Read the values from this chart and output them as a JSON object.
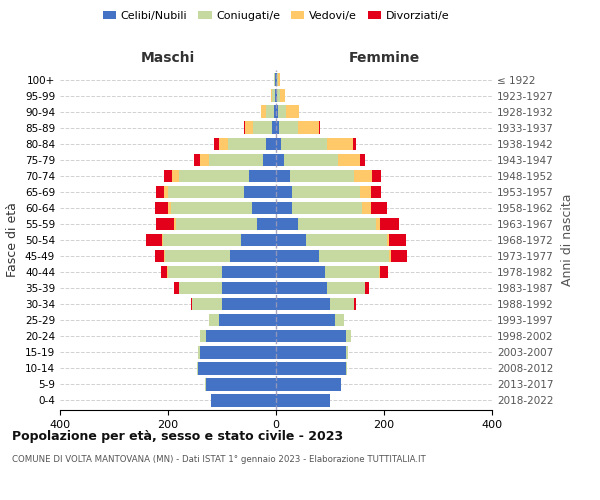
{
  "age_groups": [
    "0-4",
    "5-9",
    "10-14",
    "15-19",
    "20-24",
    "25-29",
    "30-34",
    "35-39",
    "40-44",
    "45-49",
    "50-54",
    "55-59",
    "60-64",
    "65-69",
    "70-74",
    "75-79",
    "80-84",
    "85-89",
    "90-94",
    "95-99",
    "100+"
  ],
  "birth_years": [
    "2018-2022",
    "2013-2017",
    "2008-2012",
    "2003-2007",
    "1998-2002",
    "1993-1997",
    "1988-1992",
    "1983-1987",
    "1978-1982",
    "1973-1977",
    "1968-1972",
    "1963-1967",
    "1958-1962",
    "1953-1957",
    "1948-1952",
    "1943-1947",
    "1938-1942",
    "1933-1937",
    "1928-1932",
    "1923-1927",
    "≤ 1922"
  ],
  "colors": {
    "celibi": "#4472c4",
    "coniugati": "#c5d9a0",
    "vedovi": "#ffc869",
    "divorziati": "#e3001a"
  },
  "maschi": {
    "celibi": [
      120,
      130,
      145,
      140,
      130,
      105,
      100,
      100,
      100,
      85,
      65,
      35,
      45,
      60,
      50,
      25,
      18,
      8,
      4,
      2,
      2
    ],
    "coniugati": [
      0,
      1,
      2,
      5,
      10,
      20,
      55,
      80,
      100,
      120,
      145,
      150,
      150,
      140,
      130,
      100,
      70,
      35,
      15,
      5,
      2
    ],
    "vedovi": [
      0,
      0,
      0,
      0,
      0,
      0,
      0,
      0,
      1,
      2,
      2,
      3,
      5,
      8,
      12,
      15,
      18,
      15,
      8,
      3,
      0
    ],
    "divorziati": [
      0,
      0,
      0,
      0,
      0,
      0,
      2,
      8,
      12,
      18,
      28,
      35,
      25,
      15,
      15,
      12,
      8,
      2,
      0,
      0,
      0
    ]
  },
  "femmine": {
    "celibi": [
      100,
      120,
      130,
      130,
      130,
      110,
      100,
      95,
      90,
      80,
      55,
      40,
      30,
      30,
      25,
      15,
      10,
      5,
      3,
      2,
      2
    ],
    "coniugati": [
      0,
      1,
      2,
      4,
      8,
      15,
      45,
      70,
      100,
      130,
      150,
      145,
      130,
      125,
      120,
      100,
      85,
      35,
      15,
      5,
      2
    ],
    "vedovi": [
      0,
      0,
      0,
      0,
      0,
      0,
      0,
      0,
      2,
      3,
      5,
      8,
      15,
      20,
      32,
      40,
      48,
      40,
      25,
      10,
      3
    ],
    "divorziati": [
      0,
      0,
      0,
      0,
      0,
      0,
      3,
      8,
      15,
      30,
      30,
      35,
      30,
      20,
      18,
      10,
      5,
      2,
      0,
      0,
      0
    ]
  },
  "xlim": 400,
  "title": "Popolazione per età, sesso e stato civile - 2023",
  "subtitle": "COMUNE DI VOLTA MANTOVANA (MN) - Dati ISTAT 1° gennaio 2023 - Elaborazione TUTTITALIA.IT",
  "ylabel": "Fasce di età",
  "right_ylabel": "Anni di nascita",
  "xlabel_maschi": "Maschi",
  "xlabel_femmine": "Femmine",
  "background_color": "#ffffff",
  "grid_color": "#cccccc"
}
